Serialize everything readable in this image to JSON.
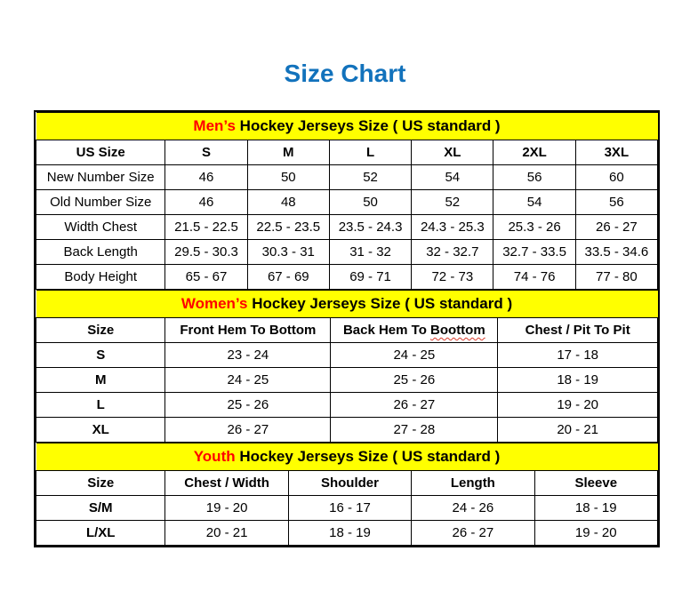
{
  "page": {
    "title": "Size Chart",
    "title_color": "#1272BC"
  },
  "colors": {
    "banner_bg": "#FFFF00",
    "accent_red": "#FF0000",
    "border": "#000000",
    "text": "#000000"
  },
  "mens": {
    "banner_highlight": "Men’s",
    "banner_rest": " Hockey Jerseys Size ( US standard )",
    "columns": [
      "US Size",
      "S",
      "M",
      "L",
      "XL",
      "2XL",
      "3XL"
    ],
    "rows": [
      {
        "label": "New Number Size",
        "values": [
          "46",
          "50",
          "52",
          "54",
          "56",
          "60"
        ]
      },
      {
        "label": "Old Number Size",
        "values": [
          "46",
          "48",
          "50",
          "52",
          "54",
          "56"
        ]
      },
      {
        "label": "Width Chest",
        "values": [
          "21.5 - 22.5",
          "22.5 - 23.5",
          "23.5 - 24.3",
          "24.3 - 25.3",
          "25.3 - 26",
          "26 - 27"
        ]
      },
      {
        "label": "Back Length",
        "values": [
          "29.5 - 30.3",
          "30.3 - 31",
          "31 - 32",
          "32 - 32.7",
          "32.7 - 33.5",
          "33.5 - 34.6"
        ]
      },
      {
        "label": "Body Height",
        "values": [
          "65 - 67",
          "67 - 69",
          "69 - 71",
          "72 - 73",
          "74 - 76",
          "77 - 80"
        ]
      }
    ]
  },
  "womens": {
    "banner_highlight": "Women’s",
    "banner_rest": " Hockey Jerseys Size ( US standard )",
    "columns": [
      "Size",
      "Front Hem To Bottom",
      "Back Hem To Boottom",
      "Chest / Pit To Pit"
    ],
    "misspelled_column": {
      "prefix": "Back Hem To ",
      "word": "Boottom"
    },
    "rows": [
      {
        "label": "S",
        "values": [
          "23 - 24",
          "24 - 25",
          "17 - 18"
        ]
      },
      {
        "label": "M",
        "values": [
          "24 - 25",
          "25 - 26",
          "18 - 19"
        ]
      },
      {
        "label": "L",
        "values": [
          "25 - 26",
          "26 - 27",
          "19 - 20"
        ]
      },
      {
        "label": "XL",
        "values": [
          "26 - 27",
          "27 - 28",
          "20 - 21"
        ]
      }
    ]
  },
  "youth": {
    "banner_highlight": "Youth",
    "banner_rest": " Hockey Jerseys Size ( US standard )",
    "columns": [
      "Size",
      "Chest / Width",
      "Shoulder",
      "Length",
      "Sleeve"
    ],
    "rows": [
      {
        "label": "S/M",
        "values": [
          "19 - 20",
          "16 - 17",
          "24 - 26",
          "18 - 19"
        ]
      },
      {
        "label": "L/XL",
        "values": [
          "20 - 21",
          "18 - 19",
          "26 - 27",
          "19 - 20"
        ]
      }
    ]
  },
  "chart_data": [
    {
      "type": "table",
      "title": "Men’s Hockey Jerseys Size ( US standard )",
      "columns": [
        "US Size",
        "S",
        "M",
        "L",
        "XL",
        "2XL",
        "3XL"
      ],
      "rows": [
        [
          "New Number Size",
          "46",
          "50",
          "52",
          "54",
          "56",
          "60"
        ],
        [
          "Old Number Size",
          "46",
          "48",
          "50",
          "52",
          "54",
          "56"
        ],
        [
          "Width Chest",
          "21.5 - 22.5",
          "22.5 - 23.5",
          "23.5 - 24.3",
          "24.3 - 25.3",
          "25.3 - 26",
          "26 - 27"
        ],
        [
          "Back Length",
          "29.5 - 30.3",
          "30.3 - 31",
          "31 - 32",
          "32 - 32.7",
          "32.7 - 33.5",
          "33.5 - 34.6"
        ],
        [
          "Body Height",
          "65 - 67",
          "67 - 69",
          "69 - 71",
          "72 - 73",
          "74 - 76",
          "77 - 80"
        ]
      ]
    },
    {
      "type": "table",
      "title": "Women’s Hockey Jerseys Size ( US standard )",
      "columns": [
        "Size",
        "Front Hem To Bottom",
        "Back Hem To Boottom",
        "Chest / Pit To Pit"
      ],
      "rows": [
        [
          "S",
          "23 - 24",
          "24 - 25",
          "17 - 18"
        ],
        [
          "M",
          "24 - 25",
          "25 - 26",
          "18 - 19"
        ],
        [
          "L",
          "25 - 26",
          "26 - 27",
          "19 - 20"
        ],
        [
          "XL",
          "26 - 27",
          "27 - 28",
          "20 - 21"
        ]
      ]
    },
    {
      "type": "table",
      "title": "Youth Hockey Jerseys Size ( US standard )",
      "columns": [
        "Size",
        "Chest / Width",
        "Shoulder",
        "Length",
        "Sleeve"
      ],
      "rows": [
        [
          "S/M",
          "19 - 20",
          "16 - 17",
          "24 - 26",
          "18 - 19"
        ],
        [
          "L/XL",
          "20 - 21",
          "18 - 19",
          "26 - 27",
          "19 - 20"
        ]
      ]
    }
  ]
}
